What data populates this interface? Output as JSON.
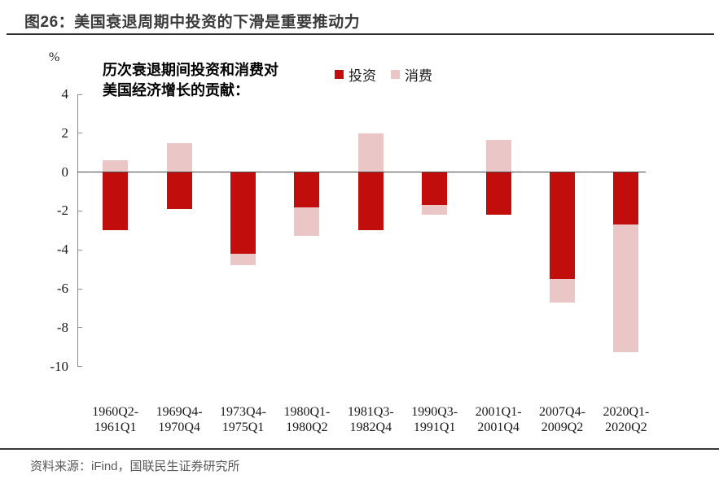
{
  "header": {
    "title": "图26：美国衰退周期中投资的下滑是重要推动力"
  },
  "footer": {
    "source": "资料来源：iFind，国联民生证券研究所"
  },
  "chart_data": {
    "type": "bar",
    "stacked": true,
    "title": "历次衰退期间投资和消费对美国经济增长的贡献：",
    "annotation_lines": [
      "历次衰退期间投资和消费对",
      "美国经济增长的贡献："
    ],
    "ylabel": "%",
    "xlabel": "",
    "grid": false,
    "legend_position": "top",
    "ylim": [
      -10,
      4
    ],
    "yticks": [
      4,
      2,
      0,
      -2,
      -4,
      -6,
      -8,
      -10
    ],
    "categories": [
      "1960Q2-1961Q1",
      "1969Q4-1970Q4",
      "1973Q4-1975Q1",
      "1980Q1-1980Q2",
      "1981Q3-1982Q4",
      "1990Q3-1991Q1",
      "2001Q1-2001Q4",
      "2007Q4-2009Q2",
      "2020Q1-2020Q2"
    ],
    "category_labels": [
      [
        "1960Q2-",
        "1961Q1"
      ],
      [
        "1969Q4-",
        "1970Q4"
      ],
      [
        "1973Q4-",
        "1975Q1"
      ],
      [
        "1980Q1-",
        "1980Q2"
      ],
      [
        "1981Q3-",
        "1982Q4"
      ],
      [
        "1990Q3-",
        "1991Q1"
      ],
      [
        "2001Q1-",
        "2001Q4"
      ],
      [
        "2007Q4-",
        "2009Q2"
      ],
      [
        "2020Q1-",
        "2020Q2"
      ]
    ],
    "series": [
      {
        "key": "investment",
        "name": "投资",
        "color": "#c20d0d",
        "values": [
          -3.0,
          -1.9,
          -4.2,
          -1.8,
          -3.0,
          -1.7,
          -2.2,
          -5.5,
          -2.7
        ]
      },
      {
        "key": "consumption",
        "name": "消费",
        "color": "#eac7c6",
        "values": [
          0.6,
          1.5,
          -0.6,
          -1.5,
          2.0,
          -0.5,
          1.65,
          -1.2,
          -6.55
        ]
      }
    ],
    "colors": {
      "axis": "#8c8c8c",
      "zero_line": "#4a4a4a",
      "text": "#1a1a1a"
    }
  }
}
